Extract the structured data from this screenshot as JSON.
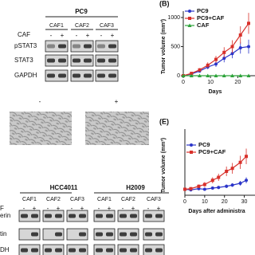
{
  "blot_a": {
    "cell_line": "PC9",
    "treatment": "CAF",
    "groups": [
      "CAF1",
      "CAF2",
      "CAF3"
    ],
    "lanes": [
      "-",
      "+"
    ],
    "rows": [
      "pSTAT3",
      "STAT3",
      "GAPDH"
    ]
  },
  "images": {
    "labels": [
      "-",
      "+"
    ]
  },
  "blot_d": {
    "cell_lines": [
      "HCC4011",
      "H2009"
    ],
    "treatment": "F",
    "groups": [
      "CAF1",
      "CAF2",
      "CAF3"
    ],
    "lanes": [
      "-",
      "+"
    ],
    "rows": [
      "erin",
      "tin",
      "DH"
    ]
  },
  "chart_data": [
    {
      "type": "line",
      "panel": "(B)",
      "ylabel": "Tumor volume (mm³)",
      "xlabel": "Days",
      "x": [
        0,
        3,
        6,
        9,
        12,
        15,
        18,
        21,
        24
      ],
      "xlim": [
        0,
        24
      ],
      "xticks": [
        0,
        10,
        20
      ],
      "ylim": [
        0,
        1000
      ],
      "yticks": [
        0,
        500,
        1000
      ],
      "series": [
        {
          "name": "PC9",
          "color": "#2b35c9",
          "marker": "circle",
          "values": [
            0,
            30,
            80,
            150,
            200,
            300,
            380,
            480,
            500
          ],
          "errors": [
            0,
            10,
            20,
            40,
            50,
            70,
            80,
            100,
            120
          ]
        },
        {
          "name": "PC9+CAF",
          "color": "#d8302a",
          "marker": "square",
          "values": [
            0,
            40,
            100,
            180,
            280,
            400,
            500,
            700,
            900
          ],
          "errors": [
            0,
            15,
            30,
            50,
            60,
            90,
            110,
            150,
            180
          ]
        },
        {
          "name": "CAF",
          "color": "#2da33a",
          "marker": "triangle",
          "values": [
            0,
            0,
            0,
            0,
            0,
            0,
            0,
            0,
            0
          ],
          "errors": [
            0,
            0,
            0,
            0,
            0,
            0,
            0,
            0,
            0
          ]
        }
      ]
    },
    {
      "type": "line",
      "panel": "(E)",
      "ylabel": "Tumor volume (mm³)",
      "xlabel": "Days after administra",
      "x": [
        0,
        3,
        7,
        10,
        14,
        17,
        21,
        24,
        28,
        31
      ],
      "xlim": [
        0,
        33
      ],
      "xticks": [
        0,
        10,
        20,
        30
      ],
      "ylim": [
        0,
        1000
      ],
      "series": [
        {
          "name": "PC9",
          "color": "#2b35c9",
          "marker": "circle",
          "values": [
            100,
            90,
            110,
            100,
            120,
            130,
            150,
            170,
            200,
            250
          ],
          "errors": [
            20,
            20,
            20,
            20,
            25,
            25,
            30,
            30,
            40,
            50
          ]
        },
        {
          "name": "PC9+CAF",
          "color": "#d8302a",
          "marker": "square",
          "values": [
            100,
            110,
            150,
            180,
            250,
            300,
            400,
            450,
            550,
            650
          ],
          "errors": [
            20,
            25,
            30,
            40,
            50,
            60,
            80,
            90,
            110,
            130
          ]
        }
      ]
    }
  ]
}
